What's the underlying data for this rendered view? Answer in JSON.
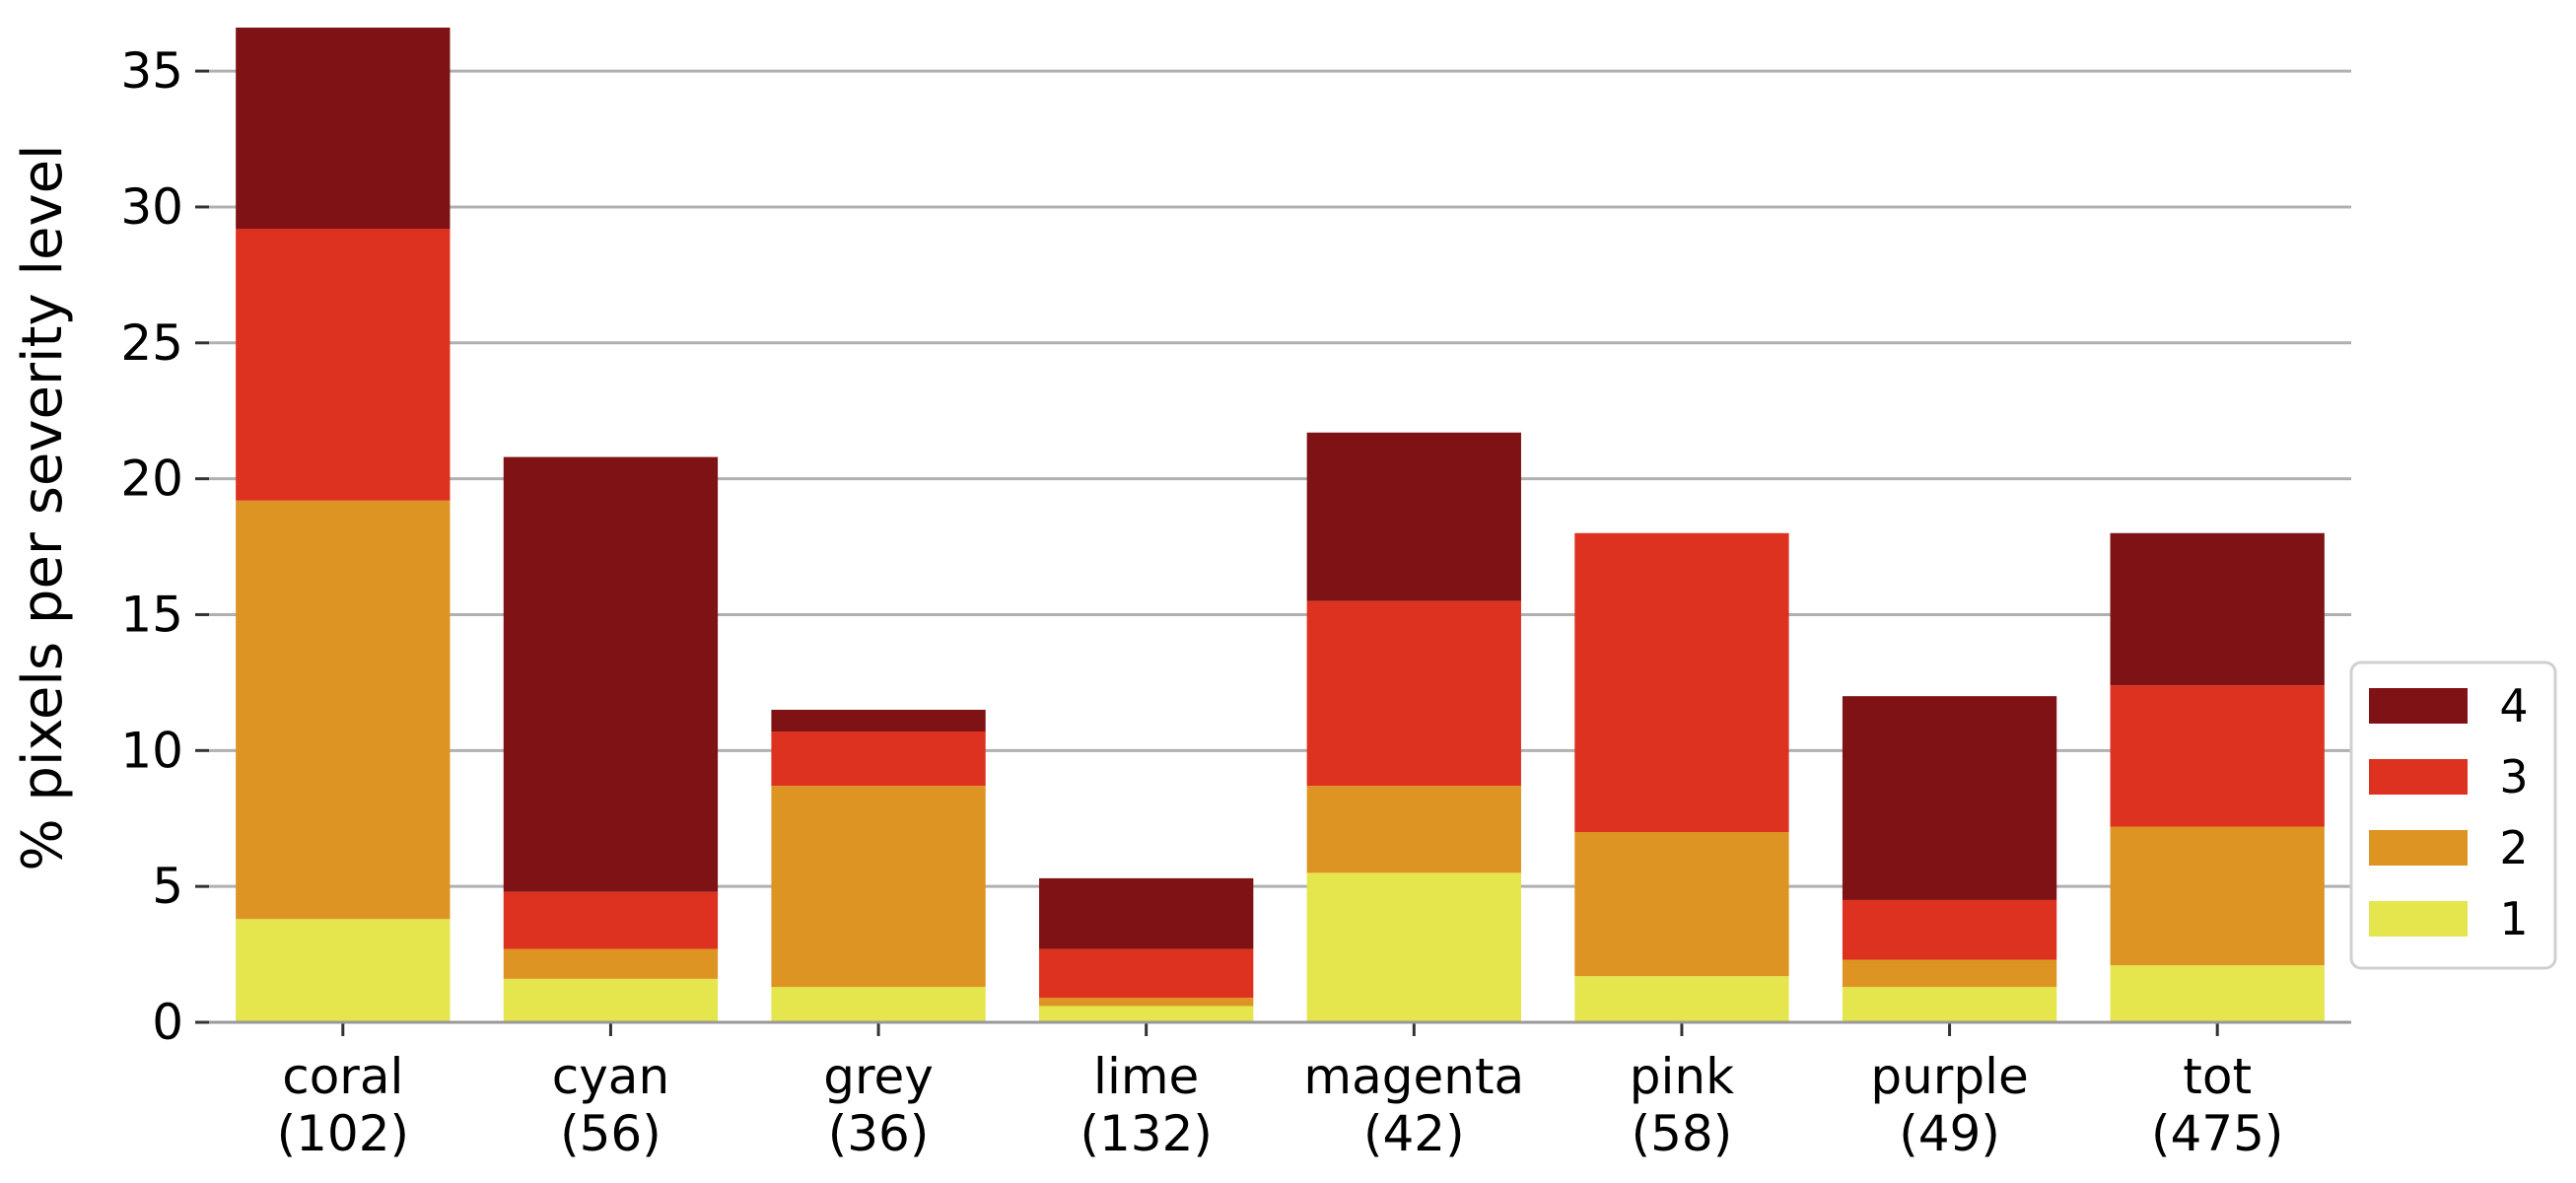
{
  "chart_data": {
    "type": "bar",
    "stacked": true,
    "categories": [
      "coral",
      "cyan",
      "grey",
      "lime",
      "magenta",
      "pink",
      "purple",
      "tot"
    ],
    "category_counts": [
      "(102)",
      "(56)",
      "(36)",
      "(132)",
      "(42)",
      "(58)",
      "(49)",
      "(475)"
    ],
    "series": [
      {
        "name": "1",
        "color": "#e5e54e",
        "values": [
          3.8,
          1.6,
          1.3,
          0.6,
          5.5,
          1.7,
          1.3,
          2.1
        ]
      },
      {
        "name": "2",
        "color": "#de9422",
        "values": [
          15.4,
          1.1,
          7.4,
          0.3,
          3.2,
          5.3,
          1.0,
          5.1
        ]
      },
      {
        "name": "3",
        "color": "#dd3220",
        "values": [
          10.0,
          2.1,
          2.0,
          1.8,
          6.8,
          11.0,
          2.2,
          5.2
        ]
      },
      {
        "name": "4",
        "color": "#7f1214",
        "values": [
          7.4,
          16.0,
          0.8,
          2.6,
          6.2,
          0.0,
          7.5,
          5.6
        ]
      }
    ],
    "xlabel": "",
    "ylabel": "% pixels per severity level",
    "yticks": [
      0,
      5,
      10,
      15,
      20,
      25,
      30,
      35
    ],
    "ylim": [
      0,
      36.6
    ],
    "grid": "horizontal",
    "legend_position": "right-lower"
  }
}
